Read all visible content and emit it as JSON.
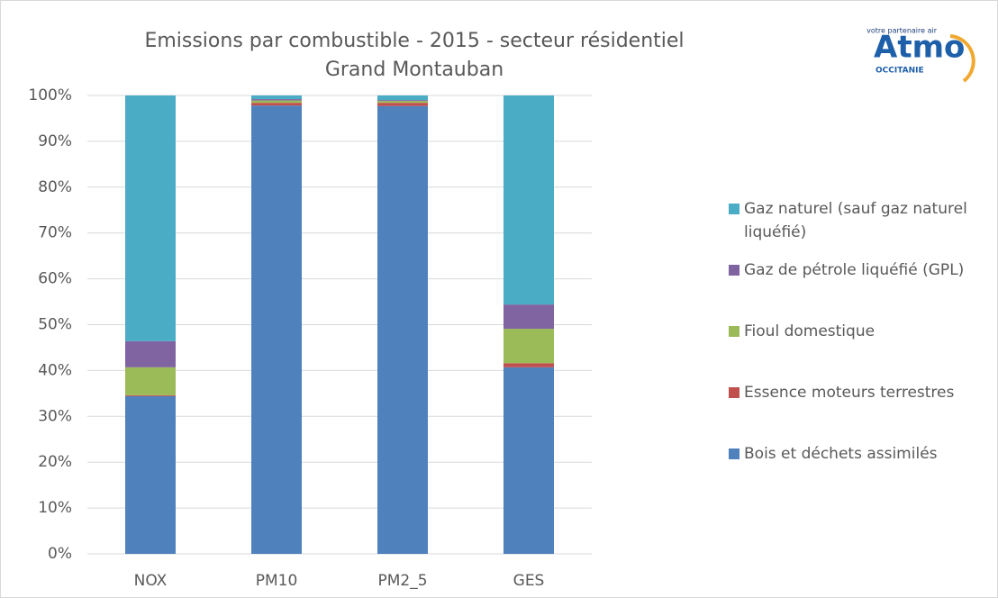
{
  "chart_data": {
    "type": "stacked_bar",
    "title": "Emissions par combustible - 2015 - secteur résidentiel",
    "subtitle": "Grand Montauban",
    "logo": {
      "tagline": "votre partenaire air",
      "name": "Atmo",
      "region": "OCCITANIE"
    },
    "categories": [
      "NOX",
      "PM10",
      "PM2_5",
      "GES"
    ],
    "series": [
      {
        "name": "Bois et déchets assimilés",
        "color": "#4f81bd",
        "values": [
          34.4,
          97.8,
          97.7,
          40.7
        ]
      },
      {
        "name": "Essence moteurs terrestres",
        "color": "#c0504d",
        "values": [
          0.2,
          0.6,
          0.7,
          0.9
        ]
      },
      {
        "name": "Fioul domestique",
        "color": "#9bbb59",
        "values": [
          6.1,
          0.5,
          0.4,
          7.5
        ]
      },
      {
        "name": "Gaz de pétrole liquéfié (GPL)",
        "color": "#8064a2",
        "values": [
          5.7,
          0.3,
          0.2,
          5.3
        ]
      },
      {
        "name": "Gaz naturel (sauf gaz naturel liquéfié)",
        "color": "#4bacc6",
        "values": [
          53.6,
          0.8,
          1.0,
          45.6
        ]
      }
    ],
    "ylim": [
      0,
      100
    ],
    "yticks": [
      {
        "value": 0,
        "label": "0%"
      },
      {
        "value": 10,
        "label": "10%"
      },
      {
        "value": 20,
        "label": "20%"
      },
      {
        "value": 30,
        "label": "30%"
      },
      {
        "value": 40,
        "label": "40%"
      },
      {
        "value": 50,
        "label": "50%"
      },
      {
        "value": 60,
        "label": "60%"
      },
      {
        "value": 70,
        "label": "70%"
      },
      {
        "value": 80,
        "label": "80%"
      },
      {
        "value": 90,
        "label": "90%"
      },
      {
        "value": 100,
        "label": "100%"
      }
    ],
    "grid": true,
    "legend": "right"
  }
}
